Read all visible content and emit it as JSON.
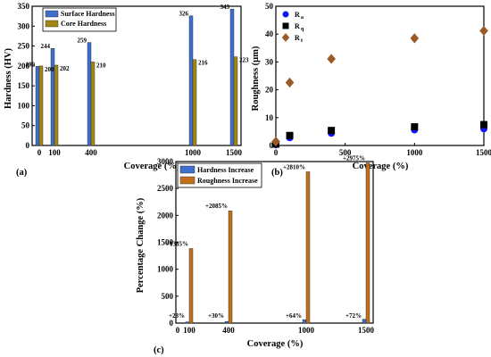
{
  "panels": [
    {
      "panel_label": "(a)",
      "chart_data": {
        "type": "bar",
        "xlabel": "Coverage (%)",
        "ylabel": "Hardness (HV)",
        "x": [
          0,
          100,
          400,
          1000,
          1500
        ],
        "xticks": [
          "0",
          "100",
          "400",
          "1000",
          "1500"
        ],
        "ylim": [
          0,
          350
        ],
        "yticks": [
          "0",
          "50",
          "100",
          "150",
          "200",
          "250",
          "300",
          "350"
        ],
        "series": [
          {
            "name": "Surface Hardness",
            "color": "#3f6fcb",
            "values": [
              199,
              244,
              259,
              326,
              343
            ],
            "labels": [
              "199",
              "244",
              "259",
              "326",
              "343"
            ]
          },
          {
            "name": "Core Hardness",
            "color": "#a38612",
            "values": [
              200,
              202,
              210,
              216,
              223
            ],
            "labels": [
              "200",
              "202",
              "210",
              "216",
              "223"
            ]
          }
        ],
        "legend": "top-left"
      }
    },
    {
      "panel_label": "(b)",
      "chart_data": {
        "type": "scatter",
        "xlabel": "Coverage (%)",
        "ylabel": "Roughness (μm)",
        "xlim": [
          0,
          1500
        ],
        "xticks": [
          "0",
          "500",
          "1000",
          "1500"
        ],
        "ylim": [
          0,
          50
        ],
        "yticks": [
          "0",
          "10",
          "20",
          "30",
          "40",
          "50"
        ],
        "x": [
          0,
          100,
          400,
          1000,
          1500
        ],
        "series": [
          {
            "name": "R",
            "sub": "a",
            "marker": "circle",
            "color": "#1414ff",
            "values": [
              0.3,
              2.8,
              4.4,
              5.6,
              6.0
            ]
          },
          {
            "name": "R",
            "sub": "q",
            "marker": "square",
            "color": "#000000",
            "values": [
              0.5,
              3.6,
              5.4,
              6.7,
              7.5
            ]
          },
          {
            "name": "R",
            "sub": "t",
            "marker": "diamond",
            "color": "#9a5b28",
            "values": [
              1.4,
              22.6,
              31.1,
              38.5,
              41.2
            ]
          }
        ],
        "legend": "top-left"
      }
    },
    {
      "panel_label": "(c)",
      "chart_data": {
        "type": "bar",
        "xlabel": "Coverage (%)",
        "ylabel": "Percentage Change (%)",
        "x": [
          100,
          400,
          1000,
          1500
        ],
        "xticks": [
          "0",
          "100",
          "400",
          "1000",
          "1500"
        ],
        "ylim": [
          0,
          3000
        ],
        "yticks": [
          "0",
          "500",
          "1000",
          "1500",
          "2000",
          "2500",
          "3000"
        ],
        "series": [
          {
            "name": "Hardness Increase",
            "color": "#3f6fcb",
            "values": [
              23,
              30,
              64,
              72
            ],
            "labels": [
              "+23%",
              "+30%",
              "+64%",
              "+72%"
            ]
          },
          {
            "name": "Roughness Increase",
            "color": "#c0701c",
            "values": [
              1385,
              2085,
              2810,
              2975
            ],
            "labels": [
              "+1385%",
              "+2085%",
              "+2810%",
              "+2975%"
            ]
          }
        ],
        "legend": "top-left"
      }
    }
  ]
}
